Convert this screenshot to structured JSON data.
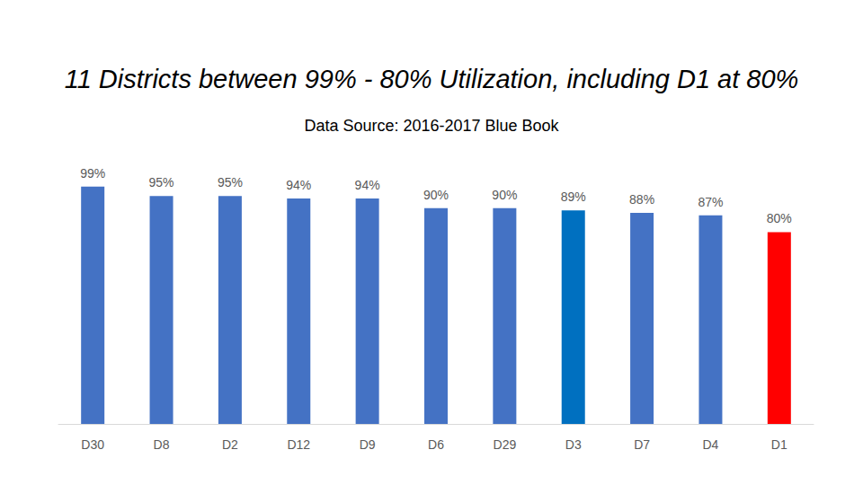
{
  "chart_data": {
    "type": "bar",
    "title": "11 Districts between 99% - 80% Utilization, including D1 at 80%",
    "subtitle": "Data Source: 2016-2017 Blue Book",
    "categories": [
      "D30",
      "D8",
      "D2",
      "D12",
      "D9",
      "D6",
      "D29",
      "D3",
      "D7",
      "D4",
      "D1"
    ],
    "values": [
      99,
      95,
      95,
      94,
      94,
      90,
      90,
      89,
      88,
      87,
      80
    ],
    "value_labels": [
      "99%",
      "95%",
      "95%",
      "94%",
      "94%",
      "90%",
      "90%",
      "89%",
      "88%",
      "87%",
      "80%"
    ],
    "colors": [
      "#4472c4",
      "#4472c4",
      "#4472c4",
      "#4472c4",
      "#4472c4",
      "#4472c4",
      "#4472c4",
      "#0070c0",
      "#4472c4",
      "#4472c4",
      "#ff0000"
    ],
    "ylim": [
      0,
      100
    ],
    "grid": false,
    "data_labels": true,
    "tick_labels": "x"
  }
}
